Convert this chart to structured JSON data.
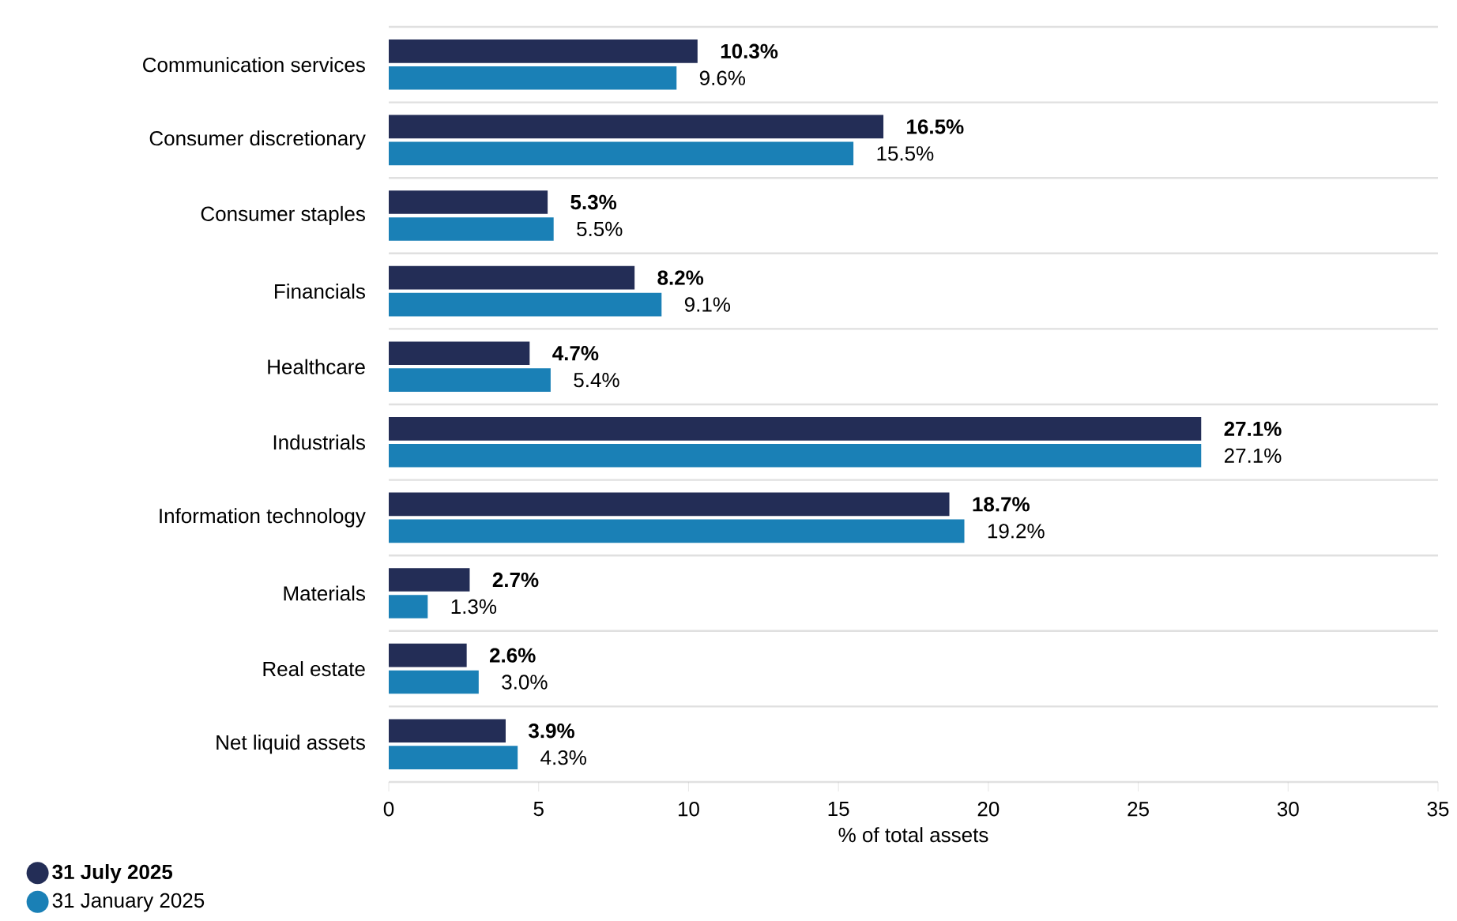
{
  "chart_data": {
    "type": "bar",
    "orientation": "horizontal",
    "xlabel": "% of total assets",
    "categories": [
      "Communication services",
      "Consumer discretionary",
      "Consumer staples",
      "Financials",
      "Healthcare",
      "Industrials",
      "Information technology",
      "Materials",
      "Real estate",
      "Net liquid assets"
    ],
    "series": [
      {
        "name": "31 July 2025",
        "color": "#232d56",
        "values": [
          10.3,
          16.5,
          5.3,
          8.2,
          4.7,
          27.1,
          18.7,
          2.7,
          2.6,
          3.9
        ],
        "value_labels": [
          "10.3%",
          "16.5%",
          "5.3%",
          "8.2%",
          "4.7%",
          "27.1%",
          "18.7%",
          "2.7%",
          "2.6%",
          "3.9%"
        ]
      },
      {
        "name": "31 January 2025",
        "color": "#1a80b6",
        "values": [
          9.6,
          15.5,
          5.5,
          9.1,
          5.4,
          27.1,
          19.2,
          1.3,
          3.0,
          4.3
        ],
        "value_labels": [
          "9.6%",
          "15.5%",
          "5.5%",
          "9.1%",
          "5.4%",
          "27.1%",
          "19.2%",
          "1.3%",
          "3.0%",
          "4.3%"
        ]
      }
    ],
    "xlim": [
      0,
      35
    ],
    "xticks": [
      0,
      5,
      10,
      15,
      20,
      25,
      30,
      35
    ],
    "legend": "bottom left"
  }
}
